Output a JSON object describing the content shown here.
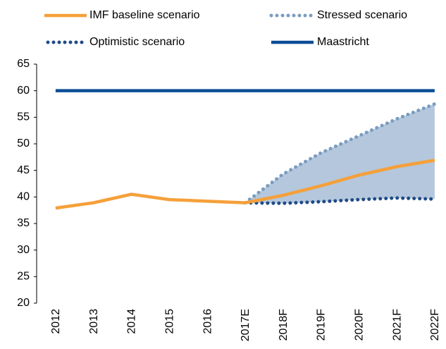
{
  "chart_data": {
    "type": "line",
    "categories": [
      "2012",
      "2013",
      "2014",
      "2015",
      "2016",
      "2017E",
      "2018F",
      "2019F",
      "2020F",
      "2021F",
      "2022F"
    ],
    "series": [
      {
        "name": "IMF baseline scenario",
        "color": "#f5a03a",
        "style": "solid",
        "values": [
          37.9,
          38.9,
          40.5,
          39.5,
          39.2,
          38.9,
          40.3,
          42.1,
          44.1,
          45.7,
          46.9
        ]
      },
      {
        "name": "Stressed scenario",
        "color": "#7a9cc0",
        "style": "dotted",
        "values": [
          null,
          null,
          null,
          null,
          null,
          38.9,
          44.3,
          48.3,
          51.5,
          54.7,
          57.5
        ]
      },
      {
        "name": "Optimistic scenario",
        "color": "#1f4a87",
        "style": "dotted",
        "values": [
          null,
          null,
          null,
          null,
          null,
          38.9,
          38.8,
          39.1,
          39.5,
          39.8,
          39.6
        ]
      },
      {
        "name": "Maastricht",
        "color": "#0b4d96",
        "style": "solid",
        "values": [
          60,
          60,
          60,
          60,
          60,
          60,
          60,
          60,
          60,
          60,
          60
        ]
      }
    ],
    "band_color": "#b4c7dc",
    "ylim": [
      20,
      65
    ],
    "yticks": [
      20,
      25,
      30,
      35,
      40,
      45,
      50,
      55,
      60,
      65
    ],
    "grid": false
  }
}
